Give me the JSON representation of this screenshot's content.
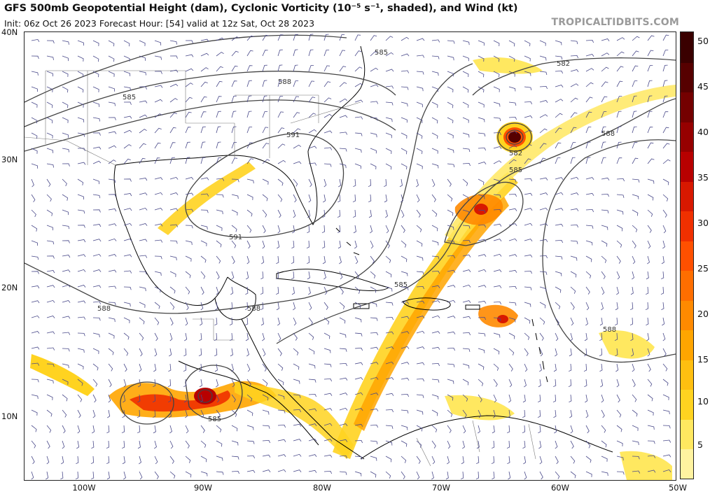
{
  "header": {
    "title": "GFS 500mb Geopotential Height (dam), Cyclonic Vorticity (10⁻⁵ s⁻¹, shaded), and Wind (kt)",
    "subtitle": "Init: 06z Oct 26 2023   Forecast Hour: [54]   valid at 12z Sat, Oct 28 2023",
    "source": "TROPICALTIDBITS.COM"
  },
  "axes": {
    "latitudes": [
      "40N",
      "30N",
      "20N",
      "10N"
    ],
    "longitudes": [
      "100W",
      "90W",
      "80W",
      "70W",
      "60W",
      "50W"
    ]
  },
  "colorbar": {
    "labels": [
      "50",
      "45",
      "40",
      "35",
      "30",
      "25",
      "20",
      "15",
      "10",
      "5"
    ],
    "colors": [
      "#fff3a0",
      "#ffe860",
      "#ffd320",
      "#ffbf10",
      "#ffa500",
      "#ff8a00",
      "#ff6e00",
      "#ff5000",
      "#f03000",
      "#d81800",
      "#b80000",
      "#960000",
      "#740000",
      "#560000",
      "#3a0000"
    ]
  },
  "contours": {
    "labels": [
      "585",
      "582",
      "588",
      "591",
      "591",
      "588",
      "588",
      "585",
      "585",
      "582",
      "588",
      "588",
      "585",
      "585"
    ]
  },
  "colors": {
    "land": "#ffffff",
    "coast": "#000000",
    "contour": "#444444",
    "barb": "#4a4a8a"
  }
}
